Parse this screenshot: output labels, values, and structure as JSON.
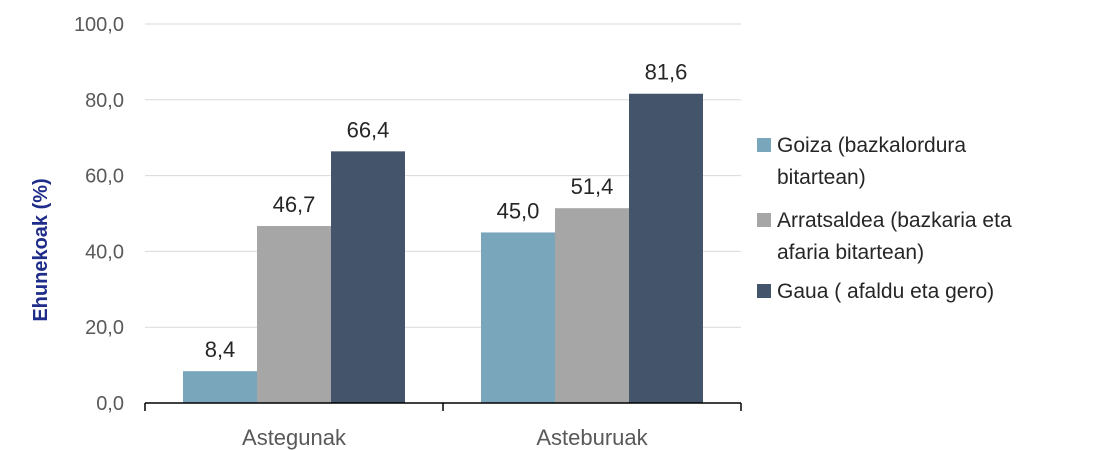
{
  "chart_data": {
    "type": "bar",
    "title": "",
    "xlabel": "",
    "ylabel": "Ehunekoak (%)",
    "ylim": [
      0,
      100
    ],
    "ytick_step": 20,
    "ytick_labels": [
      "0,0",
      "20,0",
      "40,0",
      "60,0",
      "80,0",
      "100,0"
    ],
    "grid": true,
    "legend_position": "right",
    "categories": [
      "Astegunak",
      "Asteburuak"
    ],
    "series": [
      {
        "name": "Goiza (bazkalordura bitartean)",
        "name_lines": [
          "Goiza (bazkalordura",
          "bitartean)"
        ],
        "color": "#7aa6bc",
        "values": [
          8.4,
          45.0
        ],
        "labels": [
          "8,4",
          "45,0"
        ]
      },
      {
        "name": "Arratsaldea (bazkaria eta afaria bitartean)",
        "name_lines": [
          "Arratsaldea (bazkaria eta",
          "afaria bitartean)"
        ],
        "color": "#a6a6a6",
        "values": [
          46.7,
          51.4
        ],
        "labels": [
          "46,7",
          "51,4"
        ]
      },
      {
        "name": "Gaua ( afaldu eta gero)",
        "name_lines": [
          "Gaua ( afaldu eta gero)"
        ],
        "color": "#44546a",
        "values": [
          66.4,
          81.6
        ],
        "labels": [
          "66,4",
          "81,6"
        ]
      }
    ]
  }
}
